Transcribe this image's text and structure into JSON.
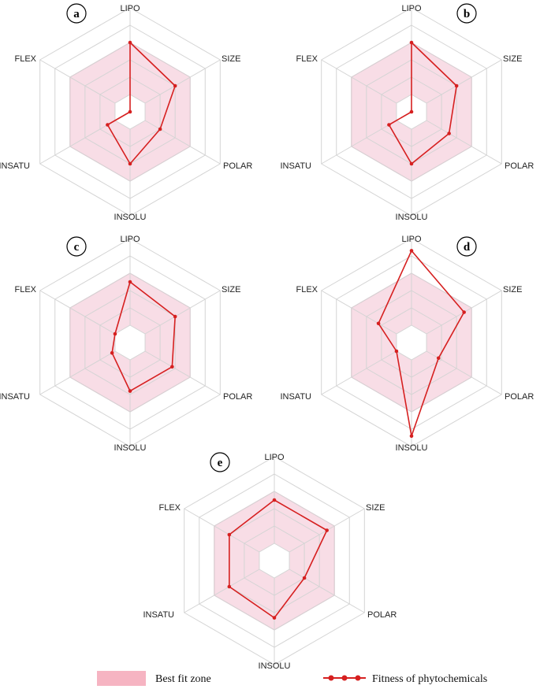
{
  "chart_data": [
    {
      "type": "radar",
      "panel": "a",
      "axes": [
        "LIPO",
        "SIZE",
        "POLAR",
        "INSOLU",
        "INSATU",
        "FLEX"
      ],
      "rlim": [
        0,
        6
      ],
      "best_fit_zone": [
        4,
        4,
        4,
        4,
        4,
        4
      ],
      "series": [
        {
          "values": [
            4.0,
            3.0,
            2.0,
            3.0,
            1.5,
            0.0
          ]
        }
      ]
    },
    {
      "type": "radar",
      "panel": "b",
      "axes": [
        "LIPO",
        "SIZE",
        "POLAR",
        "INSOLU",
        "INSATU",
        "FLEX"
      ],
      "rlim": [
        0,
        6
      ],
      "best_fit_zone": [
        4,
        4,
        4,
        4,
        4,
        4
      ],
      "series": [
        {
          "values": [
            4.0,
            3.0,
            2.5,
            3.0,
            1.5,
            0.0
          ]
        }
      ]
    },
    {
      "type": "radar",
      "panel": "c",
      "axes": [
        "LIPO",
        "SIZE",
        "POLAR",
        "INSOLU",
        "INSATU",
        "FLEX"
      ],
      "rlim": [
        0,
        6
      ],
      "best_fit_zone": [
        4,
        4,
        4,
        4,
        4,
        4
      ],
      "series": [
        {
          "values": [
            3.5,
            3.0,
            2.8,
            2.8,
            1.2,
            1.0
          ]
        }
      ]
    },
    {
      "type": "radar",
      "panel": "d",
      "axes": [
        "LIPO",
        "SIZE",
        "POLAR",
        "INSOLU",
        "INSATU",
        "FLEX"
      ],
      "rlim": [
        0,
        6
      ],
      "best_fit_zone": [
        4,
        4,
        4,
        4,
        4,
        4
      ],
      "series": [
        {
          "values": [
            5.3,
            3.5,
            1.8,
            5.4,
            1.0,
            2.2
          ]
        }
      ]
    },
    {
      "type": "radar",
      "panel": "e",
      "axes": [
        "LIPO",
        "SIZE",
        "POLAR",
        "INSOLU",
        "INSATU",
        "FLEX"
      ],
      "rlim": [
        0,
        6
      ],
      "best_fit_zone": [
        4,
        4,
        4,
        4,
        4,
        4
      ],
      "series": [
        {
          "values": [
            3.5,
            3.5,
            2.0,
            3.3,
            3.0,
            3.0
          ]
        }
      ]
    }
  ],
  "legend": {
    "zone_label": "Best fit zone",
    "series_label": "Fitness of phytochemicals"
  },
  "colors": {
    "zone_fill": "#f8dde6",
    "zone_stroke": "#e8aac0",
    "line": "#d62020",
    "grid": "#d4d4d4",
    "legend_zone": "#f6b4c2"
  }
}
